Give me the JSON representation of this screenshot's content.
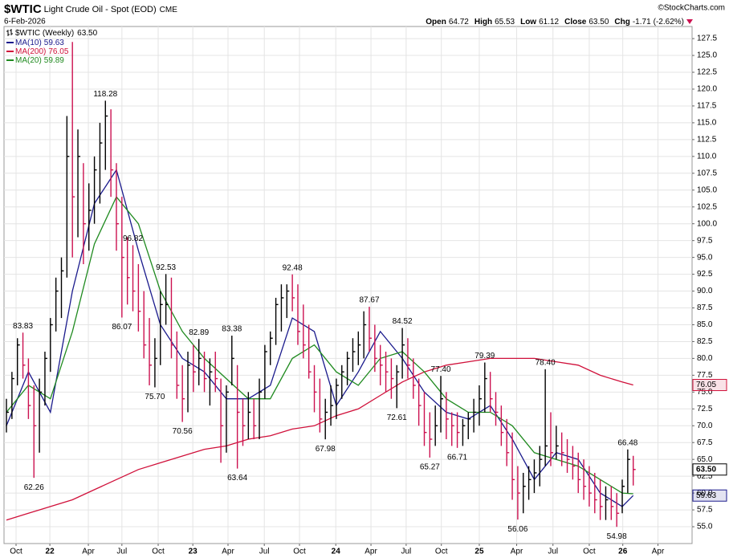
{
  "chart_data": {
    "type": "ohlc",
    "symbol": "$WTIC",
    "title": "Light Crude Oil - Spot (EOD)",
    "exchange": "CME",
    "date": "6-Feb-2026",
    "watermark": "©StockCharts.com",
    "quote": {
      "open_label": "Open",
      "open": 64.72,
      "high_label": "High",
      "low_label": "Low",
      "close_label": "Close",
      "chg_label": "Chg",
      "chg": -1.71,
      "chg_pct": {
        "value": -2.62,
        "label": "(-2.62%)"
      }
    },
    "series": {
      "name": "$WTIC (Weekly)",
      "up_color": "#000000",
      "down_color": "#cc1150",
      "high": [
        74,
        78,
        83,
        83.83,
        80,
        76,
        77,
        81,
        86,
        92,
        95,
        116,
        127,
        114,
        109,
        106,
        110,
        115,
        118.28,
        117,
        109,
        104,
        98,
        96.82,
        94,
        90,
        86,
        83,
        90,
        92.53,
        92,
        84,
        79,
        81,
        82,
        82.89,
        81,
        80,
        81,
        77,
        76,
        83.38,
        79,
        74,
        75,
        74,
        77,
        82,
        84,
        89,
        91,
        91,
        92.48,
        91,
        88,
        85,
        79,
        77,
        74,
        76,
        77,
        79,
        81,
        83,
        84,
        87,
        87.67,
        85,
        82,
        81,
        80,
        79,
        84.52,
        83,
        80,
        77,
        75,
        72,
        73,
        77.4,
        75,
        72,
        72,
        71,
        72,
        74,
        76,
        79.39,
        78,
        75,
        73,
        71,
        69,
        64,
        63,
        64,
        65,
        67,
        78.4,
        72,
        70,
        69,
        68,
        67,
        66,
        65,
        64,
        63,
        62,
        61,
        61,
        60,
        62,
        66.48,
        65.53
      ],
      "low": [
        69,
        71,
        76,
        77,
        71,
        62.26,
        66,
        73,
        78,
        84,
        86,
        92,
        95,
        98,
        94,
        96,
        100,
        103,
        108,
        104,
        96,
        86.07,
        88,
        87,
        84,
        80,
        76,
        75.7,
        79,
        85,
        80,
        74,
        70.56,
        72,
        75,
        76,
        75,
        73,
        75,
        64.5,
        66,
        76,
        63.64,
        67,
        68,
        68,
        68,
        74,
        79,
        82,
        84,
        86,
        87,
        82,
        80,
        77,
        72,
        69,
        67.98,
        70,
        71,
        74,
        76,
        78,
        79,
        80,
        81,
        78,
        76,
        75,
        74,
        72.61,
        77,
        77,
        74,
        70,
        67,
        65.27,
        67,
        69,
        68,
        67,
        66.71,
        67,
        68,
        69,
        70,
        72,
        72,
        70,
        67,
        64,
        59,
        56.06,
        57,
        59,
        60,
        61,
        64,
        64,
        65,
        64,
        63,
        62,
        60,
        59,
        58,
        57,
        56,
        56,
        56,
        54.98,
        57,
        60,
        61.12
      ],
      "close": [
        72,
        77,
        82,
        79,
        73,
        70,
        75,
        80,
        85,
        90,
        93,
        110,
        104,
        110,
        100,
        102,
        108,
        112,
        116,
        108,
        100,
        95,
        92,
        90,
        87,
        82,
        79,
        80,
        88,
        88,
        82,
        76,
        74,
        79,
        78,
        80,
        77,
        78,
        77,
        70,
        75,
        80,
        72,
        70,
        72,
        70,
        75,
        81,
        83,
        88,
        89,
        90,
        89,
        84,
        82,
        78,
        75,
        71,
        72,
        73,
        76,
        78,
        80,
        81,
        82,
        85,
        83,
        80,
        79,
        78,
        77,
        78,
        82,
        79,
        76,
        73,
        69,
        68,
        70,
        74,
        71,
        70,
        69,
        70,
        71,
        72,
        74,
        77,
        74,
        72,
        69,
        66,
        62,
        60,
        61,
        62,
        63,
        65,
        67,
        66,
        67,
        66,
        65,
        64,
        62,
        61,
        60,
        59,
        58,
        59,
        58,
        57,
        61,
        65,
        63.5
      ],
      "high_labels": {
        "3": "83.83",
        "18": "118.28",
        "23": "96.82",
        "29": "92.53",
        "35": "82.89",
        "41": "83.38",
        "52": "92.48",
        "66": "87.67",
        "72": "84.52",
        "79": "77.40",
        "87": "79.39",
        "98": "78.40",
        "113": "66.48"
      },
      "low_labels": {
        "5": "62.26",
        "21": "86.07",
        "27": "75.70",
        "32": "70.56",
        "42": "63.64",
        "58": "67.98",
        "71": "72.61",
        "77": "65.27",
        "82": "66.71",
        "93": "56.06",
        "111": "54.98"
      }
    },
    "last_close": {
      "value": 63.5,
      "label": "63.50"
    },
    "ma": [
      {
        "name": "MA(10)",
        "color": "#1a1a8c",
        "tag": true,
        "x": [
          0,
          4,
          8,
          12,
          16,
          20,
          24,
          28,
          32,
          36,
          40,
          44,
          48,
          52,
          56,
          60,
          64,
          68,
          72,
          76,
          80,
          84,
          88,
          92,
          96,
          100,
          104,
          108,
          112,
          114
        ],
        "values": [
          70,
          78,
          72,
          90,
          103,
          108,
          96,
          85,
          80,
          78,
          74,
          74,
          76,
          86,
          84,
          73,
          78,
          84,
          80,
          75,
          72,
          71,
          73,
          68,
          62,
          66,
          65,
          60,
          58,
          59.63
        ]
      },
      {
        "name": "MA(200)",
        "color": "#d0103a",
        "tag": true,
        "x": [
          0,
          4,
          8,
          12,
          16,
          20,
          24,
          28,
          32,
          36,
          40,
          44,
          48,
          52,
          56,
          60,
          64,
          68,
          72,
          76,
          80,
          84,
          88,
          92,
          96,
          100,
          104,
          108,
          112,
          114
        ],
        "values": [
          56,
          57,
          58,
          59,
          60.5,
          62,
          63.5,
          64.5,
          65.5,
          66.5,
          67,
          68,
          68.5,
          69.5,
          70,
          71.5,
          72.5,
          74.5,
          76.5,
          78,
          79,
          79.5,
          80,
          80,
          80,
          79.5,
          79,
          77.5,
          76.5,
          76.05
        ]
      },
      {
        "name": "MA(20)",
        "color": "#1f8a1f",
        "tag": false,
        "x": [
          0,
          4,
          8,
          12,
          16,
          20,
          24,
          28,
          32,
          36,
          40,
          44,
          48,
          52,
          56,
          60,
          64,
          68,
          72,
          76,
          80,
          84,
          88,
          92,
          96,
          100,
          104,
          108,
          112,
          114
        ],
        "values": [
          72,
          76,
          74,
          84,
          97,
          104,
          100,
          90,
          84,
          80,
          77,
          74,
          74,
          80,
          82,
          78,
          76,
          80,
          81,
          78,
          74,
          72,
          72,
          70,
          66,
          65,
          64,
          62,
          60,
          59.89
        ]
      }
    ],
    "xlim": [
      -0.44,
      124.7
    ],
    "ylim": [
      52.5,
      129.3
    ],
    "xticks": [
      {
        "value": 1.75,
        "label": "Oct"
      },
      {
        "value": 7.9,
        "label": "22"
      },
      {
        "value": 14.9,
        "label": "Apr"
      },
      {
        "value": 21,
        "label": "Jul"
      },
      {
        "value": 27.6,
        "label": "Oct"
      },
      {
        "value": 33.9,
        "label": "23"
      },
      {
        "value": 40.3,
        "label": "Apr"
      },
      {
        "value": 46.9,
        "label": "Jul"
      },
      {
        "value": 53.3,
        "label": "Oct"
      },
      {
        "value": 59.9,
        "label": "24"
      },
      {
        "value": 66.3,
        "label": "Apr"
      },
      {
        "value": 72.7,
        "label": "Jul"
      },
      {
        "value": 79.1,
        "label": "Oct"
      },
      {
        "value": 86,
        "label": "25"
      },
      {
        "value": 92.8,
        "label": "Apr"
      },
      {
        "value": 99.4,
        "label": "Jul"
      },
      {
        "value": 106,
        "label": "Oct"
      },
      {
        "value": 112.1,
        "label": "26"
      },
      {
        "value": 118.5,
        "label": "Apr"
      }
    ],
    "yticks": [
      {
        "value": 55,
        "label": "55.0"
      },
      57.5,
      {
        "value": 60,
        "label": "60.0"
      },
      62.5,
      {
        "value": 65,
        "label": "65.0"
      },
      67.5,
      {
        "value": 70,
        "label": "70.0"
      },
      72.5,
      {
        "value": 75,
        "label": "75.0"
      },
      77.5,
      {
        "value": 80,
        "label": "80.0"
      },
      82.5,
      {
        "value": 85,
        "label": "85.0"
      },
      87.5,
      {
        "value": 90,
        "label": "90.0"
      },
      92.5,
      {
        "value": 95,
        "label": "95.0"
      },
      97.5,
      {
        "value": 100,
        "label": "100.0"
      },
      102.5,
      {
        "value": 105,
        "label": "105.0"
      },
      107.5,
      {
        "value": 110,
        "label": "110.0"
      },
      112.5,
      {
        "value": 115,
        "label": "115.0"
      },
      117.5,
      {
        "value": 120,
        "label": "120.0"
      },
      122.5,
      {
        "value": 125,
        "label": "125.0"
      },
      127.5
    ],
    "grid": true
  }
}
